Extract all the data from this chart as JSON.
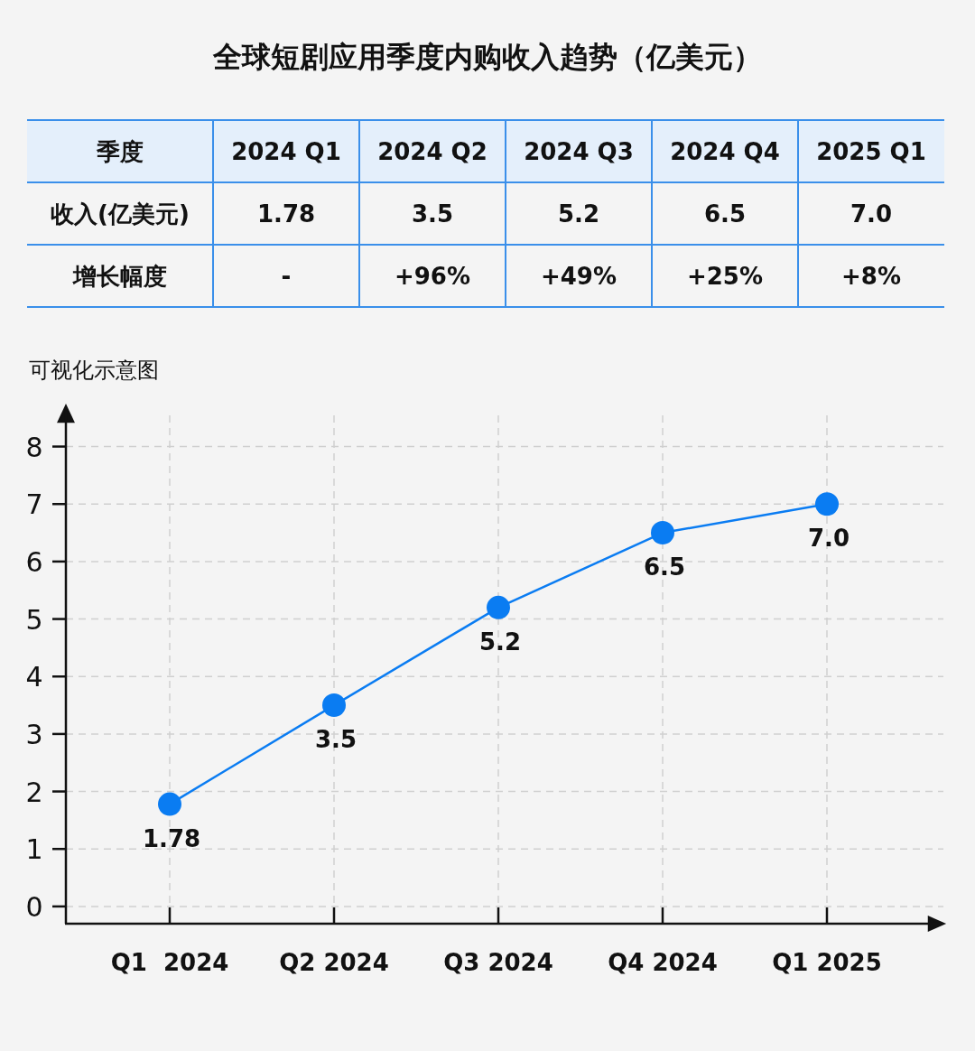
{
  "chart_data": {
    "type": "line",
    "title": "全球短剧应用季度内购收入趋势（亿美元）",
    "categories": [
      "Q1  2024",
      "Q2 2024",
      "Q3 2024",
      "Q4 2024",
      "Q1 2025"
    ],
    "values": [
      1.78,
      3.5,
      5.2,
      6.5,
      7.0
    ],
    "value_labels": [
      "1.78",
      "3.5",
      "5.2",
      "6.5",
      "7.0"
    ],
    "color": "#0a7cf2",
    "marker": "circle",
    "line_style": "solid",
    "grid": true,
    "ylim": [
      -0.3,
      8.7
    ],
    "yticks": [
      0,
      1,
      2,
      3,
      4,
      5,
      6,
      7,
      8
    ],
    "annotations": [
      "可视化示意图",
      "季度",
      "2024 Q1",
      "2024 Q2",
      "2024 Q3",
      "2024 Q4",
      "2025 Q1",
      "收入(亿美元)",
      "增长幅度",
      "-",
      "+96%",
      "+49%",
      "+25%",
      "+8%"
    ]
  }
}
